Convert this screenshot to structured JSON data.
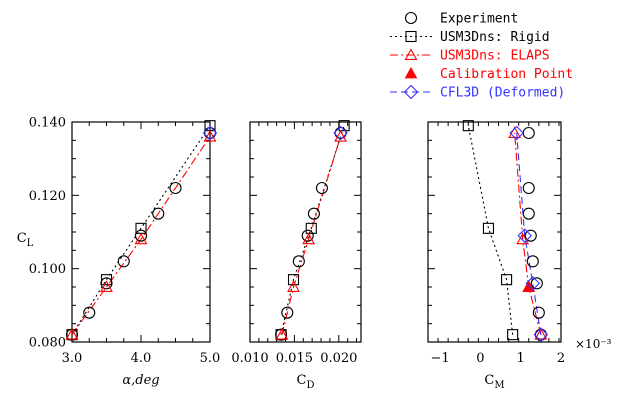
{
  "colors": {
    "black": "#000000",
    "red": "#ff0000",
    "blue": "#3333ff",
    "axis": "#000000"
  },
  "legend": [
    {
      "label": "Experiment",
      "marker": "circle-open",
      "line": "none",
      "color": "#000000"
    },
    {
      "label": "USM3Dns: Rigid",
      "marker": "square-open",
      "line": "dotted",
      "color": "#000000"
    },
    {
      "label": "USM3Dns: ELAPS",
      "marker": "triangle-open",
      "line": "dashdot",
      "color": "#ff0000"
    },
    {
      "label": "Calibration Point",
      "marker": "triangle-filled",
      "line": "none",
      "color": "#ff0000"
    },
    {
      "label": "CFL3D (Deformed)",
      "marker": "diamond-open",
      "line": "dashed",
      "color": "#3333ff"
    }
  ],
  "chart_data": [
    {
      "type": "scatter",
      "xlabel": "α,deg",
      "ylabel": "C_L",
      "xlim": [
        3.0,
        5.0
      ],
      "ylim": [
        0.08,
        0.14
      ],
      "xticks": [
        "3.0",
        "4.0",
        "5.0"
      ],
      "yticks": [
        "0.080",
        "0.100",
        "0.120",
        "0.140"
      ],
      "series": [
        {
          "name": "Experiment",
          "x": [
            3.0,
            3.25,
            3.5,
            3.75,
            4.0,
            4.25,
            4.5,
            5.0
          ],
          "y": [
            0.082,
            0.088,
            0.096,
            0.102,
            0.109,
            0.115,
            0.122,
            0.137
          ]
        },
        {
          "name": "USM3Dns: Rigid",
          "x": [
            3.0,
            3.5,
            4.0,
            5.0
          ],
          "y": [
            0.082,
            0.097,
            0.111,
            0.139
          ]
        },
        {
          "name": "USM3Dns: ELAPS",
          "x": [
            3.0,
            3.5,
            4.0,
            5.0
          ],
          "y": [
            0.082,
            0.095,
            0.108,
            0.136
          ]
        },
        {
          "name": "Calibration Point",
          "x": [],
          "y": []
        },
        {
          "name": "CFL3D (Deformed)",
          "x": [
            5.0
          ],
          "y": [
            0.137
          ]
        }
      ]
    },
    {
      "type": "scatter",
      "xlabel": "C_D",
      "ylabel": "",
      "xlim": [
        0.01,
        0.0225
      ],
      "ylim": [
        0.08,
        0.14
      ],
      "xticks": [
        "0.010",
        "0.015",
        "0.020"
      ],
      "yticks": [],
      "series": [
        {
          "name": "Experiment",
          "x": [
            0.0135,
            0.0142,
            0.0155,
            0.0165,
            0.0172,
            0.0181,
            0.0202
          ],
          "y": [
            0.082,
            0.088,
            0.102,
            0.109,
            0.115,
            0.122,
            0.137
          ]
        },
        {
          "name": "USM3Dns: Rigid",
          "x": [
            0.0135,
            0.0149,
            0.0169,
            0.0206
          ],
          "y": [
            0.082,
            0.097,
            0.111,
            0.139
          ]
        },
        {
          "name": "USM3Dns: ELAPS",
          "x": [
            0.0136,
            0.0149,
            0.0166,
            0.0202
          ],
          "y": [
            0.082,
            0.095,
            0.108,
            0.136
          ]
        },
        {
          "name": "Calibration Point",
          "x": [],
          "y": []
        },
        {
          "name": "CFL3D (Deformed)",
          "x": [
            0.0202
          ],
          "y": [
            0.137
          ]
        }
      ]
    },
    {
      "type": "scatter",
      "xlabel": "C_M",
      "ylabel": "",
      "multiplier": "×10⁻³",
      "xlim": [
        -1.3,
        2.0
      ],
      "ylim": [
        0.08,
        0.14
      ],
      "xticks": [
        "−1",
        "0",
        "1",
        "2"
      ],
      "yticks": [],
      "series": [
        {
          "name": "Experiment",
          "x": [
            1.5,
            1.45,
            1.4,
            1.3,
            1.25,
            1.2,
            1.2,
            1.2
          ],
          "y": [
            0.082,
            0.088,
            0.096,
            0.102,
            0.109,
            0.115,
            0.122,
            0.137
          ]
        },
        {
          "name": "USM3Dns: Rigid",
          "x": [
            0.8,
            0.65,
            0.2,
            -0.3
          ],
          "y": [
            0.082,
            0.097,
            0.111,
            0.139
          ]
        },
        {
          "name": "USM3Dns: ELAPS",
          "x": [
            1.5,
            1.2,
            1.05,
            0.85
          ],
          "y": [
            0.082,
            0.095,
            0.108,
            0.137
          ]
        },
        {
          "name": "Calibration Point",
          "x": [
            1.2
          ],
          "y": [
            0.095
          ]
        },
        {
          "name": "CFL3D (Deformed)",
          "x": [
            1.5,
            1.3,
            1.1,
            0.9
          ],
          "y": [
            0.082,
            0.096,
            0.109,
            0.137
          ]
        }
      ]
    }
  ]
}
